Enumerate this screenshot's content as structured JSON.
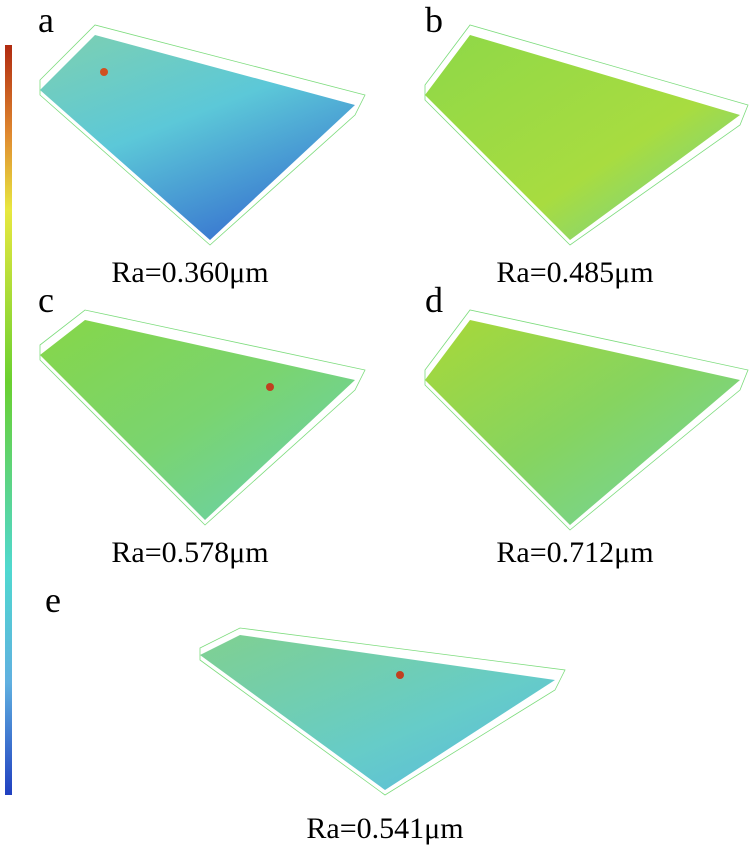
{
  "panels": [
    {
      "label": "a",
      "caption": "Ra=0.360μm"
    },
    {
      "label": "b",
      "caption": "Ra=0.485μm"
    },
    {
      "label": "c",
      "caption": "Ra=0.578μm"
    },
    {
      "label": "d",
      "caption": "Ra=0.712μm"
    },
    {
      "label": "e",
      "caption": "Ra=0.541μm"
    }
  ]
}
